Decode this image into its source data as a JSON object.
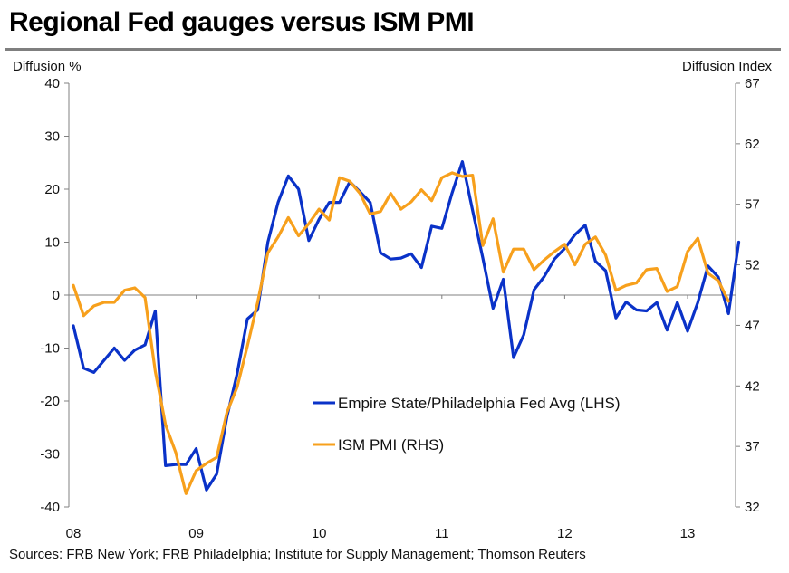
{
  "title": "Regional Fed gauges versus ISM PMI",
  "source": "Sources: FRB New York; FRB Philadelphia; Institute for Supply Management; Thomson Reuters",
  "chart_data": {
    "type": "line",
    "title": "Regional Fed gauges versus ISM PMI",
    "y_left_label": "Diffusion %",
    "y_right_label": "Diffusion Index",
    "y_left_lim": [
      -40,
      40
    ],
    "y_left_ticks": [
      40,
      30,
      20,
      10,
      0,
      -10,
      -20,
      -30,
      -40
    ],
    "y_right_lim": [
      32,
      67
    ],
    "y_right_ticks": [
      67,
      62,
      57,
      52,
      47,
      42,
      37,
      32
    ],
    "x_tick_labels": [
      "08",
      "09",
      "10",
      "11",
      "12",
      "13"
    ],
    "x_start": "2008-01",
    "x_frequency": "monthly",
    "grid": false,
    "legend_position": "lower-center",
    "series": [
      {
        "name": "Empire State/Philadelphia Fed Avg (LHS)",
        "axis": "left",
        "color": "#0a32c8",
        "values": [
          -5.8,
          -13.8,
          -14.6,
          -12.3,
          -10.0,
          -12.3,
          -10.4,
          -9.4,
          -3.0,
          -32.2,
          -32.0,
          -32.0,
          -29.0,
          -36.8,
          -33.8,
          -23.0,
          -14.8,
          -4.5,
          -2.8,
          10.0,
          17.5,
          22.5,
          20.0,
          10.3,
          14.3,
          17.5,
          17.5,
          21.4,
          19.5,
          17.5,
          8.0,
          6.8,
          7.0,
          7.8,
          5.2,
          13.0,
          12.6,
          19.3,
          25.2,
          16.0,
          7.0,
          -2.5,
          3.0,
          -11.8,
          -7.5,
          1.0,
          3.5,
          6.8,
          8.8,
          11.4,
          13.2,
          6.4,
          4.6,
          -4.3,
          -1.3,
          -2.8,
          -3.0,
          -1.4,
          -6.6,
          -1.4,
          -6.8,
          -1.4,
          5.5,
          3.4,
          -3.5,
          10.0
        ]
      },
      {
        "name": "ISM PMI (RHS)",
        "axis": "right",
        "color": "#f7a01c",
        "values": [
          50.3,
          47.8,
          48.6,
          48.9,
          48.9,
          49.9,
          50.1,
          49.3,
          43.2,
          38.8,
          36.5,
          33.1,
          35.0,
          35.6,
          36.1,
          39.8,
          41.9,
          45.3,
          48.9,
          53.0,
          54.3,
          55.9,
          54.4,
          55.4,
          56.6,
          55.7,
          59.2,
          58.9,
          57.9,
          56.2,
          56.4,
          57.9,
          56.6,
          57.2,
          58.2,
          57.3,
          59.2,
          59.6,
          59.3,
          59.4,
          53.6,
          55.8,
          51.4,
          53.3,
          53.3,
          51.6,
          52.4,
          53.1,
          53.7,
          52.0,
          53.7,
          54.3,
          52.8,
          49.9,
          50.3,
          50.5,
          51.6,
          51.7,
          49.8,
          50.2,
          53.1,
          54.2,
          51.3,
          50.7,
          49.0
        ]
      }
    ]
  }
}
